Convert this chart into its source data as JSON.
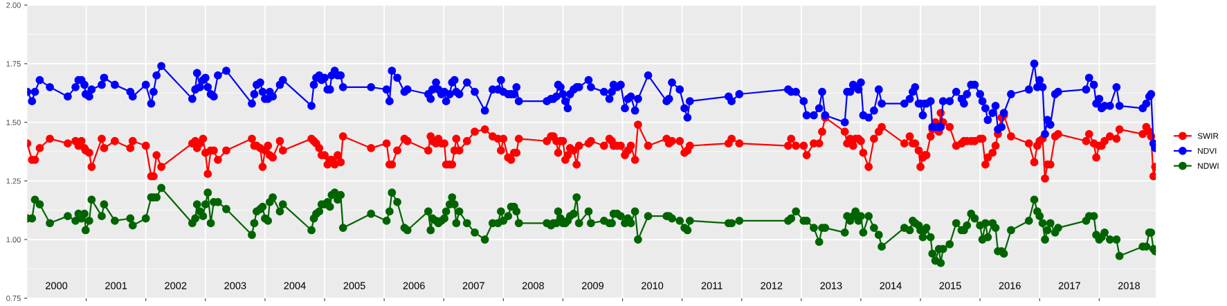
{
  "chart_data": {
    "type": "line",
    "marker": "circle",
    "line_style": "solid",
    "grid": true,
    "legend": "right",
    "xlim": [
      2000.01,
      2018.95
    ],
    "ylim": [
      0.75,
      2.0
    ],
    "xticks": [
      {
        "value": 2000.5,
        "label": "2000"
      },
      {
        "value": 2001.5,
        "label": "2001"
      },
      {
        "value": 2002.5,
        "label": "2002"
      },
      {
        "value": 2003.5,
        "label": "2003"
      },
      {
        "value": 2004.5,
        "label": "2004"
      },
      {
        "value": 2005.5,
        "label": "2005"
      },
      {
        "value": 2006.5,
        "label": "2006"
      },
      {
        "value": 2007.5,
        "label": "2007"
      },
      {
        "value": 2008.5,
        "label": "2008"
      },
      {
        "value": 2009.5,
        "label": "2009"
      },
      {
        "value": 2010.5,
        "label": "2010"
      },
      {
        "value": 2011.5,
        "label": "2011"
      },
      {
        "value": 2012.5,
        "label": "2012"
      },
      {
        "value": 2013.5,
        "label": "2013"
      },
      {
        "value": 2014.5,
        "label": "2014"
      },
      {
        "value": 2015.5,
        "label": "2015"
      },
      {
        "value": 2016.5,
        "label": "2016"
      },
      {
        "value": 2017.5,
        "label": "2017"
      },
      {
        "value": 2018.5,
        "label": "2018"
      },
      {
        "value": 2001,
        "label": null
      },
      {
        "value": 2002,
        "label": null
      },
      {
        "value": 2003,
        "label": null
      },
      {
        "value": 2004,
        "label": null
      },
      {
        "value": 2005,
        "label": null
      },
      {
        "value": 2006,
        "label": null
      },
      {
        "value": 2007,
        "label": null
      },
      {
        "value": 2008,
        "label": null
      },
      {
        "value": 2009,
        "label": null
      },
      {
        "value": 2010,
        "label": null
      },
      {
        "value": 2011,
        "label": null
      },
      {
        "value": 2012,
        "label": null
      },
      {
        "value": 2013,
        "label": null
      },
      {
        "value": 2014,
        "label": null
      },
      {
        "value": 2015,
        "label": null
      },
      {
        "value": 2016,
        "label": null
      },
      {
        "value": 2017,
        "label": null
      },
      {
        "value": 2018,
        "label": null
      }
    ],
    "yticks": [
      {
        "value": 0.75,
        "label": "0.75"
      },
      {
        "value": 1.0,
        "label": "1.00"
      },
      {
        "value": 1.25,
        "label": "1.25"
      },
      {
        "value": 1.5,
        "label": "1.50"
      },
      {
        "value": 1.75,
        "label": "1.75"
      },
      {
        "value": 2.0,
        "label": "2.00"
      }
    ],
    "x": [
      2000.01,
      2000.09,
      2000.14,
      2000.22,
      2000.39,
      2000.69,
      2000.82,
      2000.87,
      2000.92,
      2000.97,
      2000.99,
      2001.05,
      2001.09,
      2001.26,
      2001.3,
      2001.48,
      2001.74,
      2001.78,
      2002.0,
      2002.09,
      2002.13,
      2002.18,
      2002.26,
      2002.78,
      2002.83,
      2002.86,
      2002.91,
      2002.96,
      2003.0,
      2003.04,
      2003.09,
      2003.14,
      2003.21,
      2003.35,
      2003.78,
      2003.82,
      2003.86,
      2003.92,
      2003.96,
      2004.0,
      2004.05,
      2004.08,
      2004.13,
      2004.25,
      2004.3,
      2004.78,
      2004.82,
      2004.86,
      2004.91,
      2004.95,
      2005.0,
      2005.05,
      2005.09,
      2005.12,
      2005.17,
      2005.22,
      2005.27,
      2005.31,
      2005.78,
      2006.04,
      2006.09,
      2006.13,
      2006.22,
      2006.34,
      2006.39,
      2006.74,
      2006.78,
      2006.81,
      2006.87,
      2006.91,
      2006.96,
      2007.01,
      2007.04,
      2007.1,
      2007.14,
      2007.18,
      2007.21,
      2007.26,
      2007.39,
      2007.52,
      2007.69,
      2007.82,
      2007.91,
      2007.96,
      2008.0,
      2008.08,
      2008.13,
      2008.18,
      2008.22,
      2008.26,
      2008.73,
      2008.8,
      2008.84,
      2008.89,
      2008.92,
      2008.96,
      2009.0,
      2009.04,
      2009.08,
      2009.12,
      2009.18,
      2009.23,
      2009.27,
      2009.43,
      2009.47,
      2009.69,
      2009.78,
      2009.82,
      2009.85,
      2009.91,
      2009.97,
      2010.04,
      2010.09,
      2010.14,
      2010.21,
      2010.26,
      2010.43,
      2010.74,
      2010.78,
      2010.83,
      2010.96,
      2011.04,
      2011.09,
      2011.13,
      2011.78,
      2011.83,
      2011.96,
      2012.78,
      2012.83,
      2012.91,
      2013.04,
      2013.09,
      2013.21,
      2013.3,
      2013.35,
      2013.4,
      2013.73,
      2013.77,
      2013.82,
      2013.87,
      2013.91,
      2013.96,
      2014.0,
      2014.04,
      2014.13,
      2014.22,
      2014.3,
      2014.35,
      2014.73,
      2014.82,
      2014.87,
      2014.91,
      2014.97,
      2015.0,
      2015.04,
      2015.07,
      2015.1,
      2015.17,
      2015.2,
      2015.25,
      2015.31,
      2015.34,
      2015.38,
      2015.49,
      2015.6,
      2015.69,
      2015.73,
      2015.78,
      2015.85,
      2015.91,
      2016.0,
      2016.04,
      2016.09,
      2016.13,
      2016.21,
      2016.26,
      2016.3,
      2016.36,
      2016.4,
      2016.52,
      2016.82,
      2016.91,
      2016.96,
      2017.0,
      2017.05,
      2017.09,
      2017.13,
      2017.18,
      2017.26,
      2017.31,
      2017.78,
      2017.83,
      2017.91,
      2017.95,
      2018.0,
      2018.04,
      2018.09,
      2018.18,
      2018.29,
      2018.34,
      2018.73,
      2018.79,
      2018.84,
      2018.87,
      2018.91,
      2018.94
    ],
    "series": [
      {
        "name": "SWIR",
        "color": "#ff0000",
        "values": [
          1.41,
          1.34,
          1.34,
          1.39,
          1.43,
          1.41,
          1.42,
          1.4,
          1.42,
          1.39,
          1.38,
          1.37,
          1.31,
          1.43,
          1.39,
          1.42,
          1.39,
          1.42,
          1.4,
          1.27,
          1.27,
          1.36,
          1.31,
          1.41,
          1.42,
          1.39,
          1.41,
          1.43,
          1.37,
          1.28,
          1.38,
          1.38,
          1.34,
          1.38,
          1.43,
          1.4,
          1.4,
          1.39,
          1.31,
          1.38,
          1.4,
          1.36,
          1.35,
          1.42,
          1.38,
          1.43,
          1.42,
          1.41,
          1.39,
          1.36,
          1.36,
          1.32,
          1.34,
          1.34,
          1.32,
          1.36,
          1.33,
          1.44,
          1.39,
          1.41,
          1.32,
          1.32,
          1.38,
          1.43,
          1.42,
          1.38,
          1.44,
          1.42,
          1.41,
          1.43,
          1.41,
          1.41,
          1.32,
          1.32,
          1.32,
          1.38,
          1.43,
          1.38,
          1.42,
          1.46,
          1.47,
          1.44,
          1.43,
          1.38,
          1.43,
          1.35,
          1.34,
          1.37,
          1.37,
          1.43,
          1.42,
          1.44,
          1.44,
          1.42,
          1.37,
          1.42,
          1.42,
          1.34,
          1.36,
          1.39,
          1.38,
          1.32,
          1.4,
          1.41,
          1.42,
          1.4,
          1.43,
          1.42,
          1.4,
          1.4,
          1.4,
          1.36,
          1.38,
          1.4,
          1.34,
          1.49,
          1.4,
          1.43,
          1.41,
          1.42,
          1.42,
          1.37,
          1.38,
          1.4,
          1.41,
          1.43,
          1.41,
          1.4,
          1.43,
          1.4,
          1.4,
          1.36,
          1.41,
          1.41,
          1.46,
          1.52,
          1.46,
          1.41,
          1.43,
          1.4,
          1.43,
          1.43,
          1.42,
          1.37,
          1.31,
          1.43,
          1.46,
          1.48,
          1.41,
          1.44,
          1.41,
          1.41,
          1.38,
          1.31,
          1.35,
          1.36,
          1.36,
          1.44,
          1.47,
          1.5,
          1.46,
          1.54,
          1.5,
          1.48,
          1.4,
          1.41,
          1.42,
          1.42,
          1.42,
          1.42,
          1.43,
          1.43,
          1.32,
          1.35,
          1.37,
          1.4,
          1.45,
          1.52,
          1.53,
          1.44,
          1.41,
          1.33,
          1.4,
          1.42,
          1.43,
          1.26,
          1.32,
          1.32,
          1.44,
          1.45,
          1.42,
          1.45,
          1.41,
          1.35,
          1.4,
          1.4,
          1.42,
          1.44,
          1.43,
          1.47,
          1.45,
          1.48,
          1.46,
          1.44,
          1.27,
          1.31
        ]
      },
      {
        "name": "NDVI",
        "color": "#0000ff",
        "values": [
          1.63,
          1.59,
          1.63,
          1.68,
          1.65,
          1.61,
          1.65,
          1.68,
          1.68,
          1.66,
          1.62,
          1.61,
          1.64,
          1.66,
          1.69,
          1.66,
          1.63,
          1.61,
          1.66,
          1.58,
          1.63,
          1.7,
          1.74,
          1.6,
          1.64,
          1.71,
          1.65,
          1.68,
          1.69,
          1.65,
          1.62,
          1.61,
          1.7,
          1.72,
          1.58,
          1.62,
          1.66,
          1.67,
          1.63,
          1.6,
          1.6,
          1.63,
          1.61,
          1.66,
          1.68,
          1.57,
          1.66,
          1.69,
          1.7,
          1.68,
          1.69,
          1.64,
          1.64,
          1.7,
          1.72,
          1.7,
          1.7,
          1.65,
          1.65,
          1.64,
          1.59,
          1.72,
          1.69,
          1.63,
          1.64,
          1.62,
          1.6,
          1.64,
          1.67,
          1.64,
          1.62,
          1.63,
          1.59,
          1.62,
          1.67,
          1.68,
          1.63,
          1.62,
          1.67,
          1.63,
          1.55,
          1.64,
          1.64,
          1.68,
          1.63,
          1.62,
          1.62,
          1.62,
          1.65,
          1.59,
          1.59,
          1.6,
          1.6,
          1.61,
          1.66,
          1.65,
          1.62,
          1.59,
          1.56,
          1.62,
          1.64,
          1.65,
          1.65,
          1.68,
          1.65,
          1.63,
          1.6,
          1.63,
          1.66,
          1.65,
          1.66,
          1.56,
          1.6,
          1.61,
          1.55,
          1.6,
          1.7,
          1.59,
          1.6,
          1.67,
          1.64,
          1.56,
          1.52,
          1.59,
          1.61,
          1.59,
          1.62,
          1.64,
          1.63,
          1.63,
          1.59,
          1.53,
          1.53,
          1.56,
          1.63,
          1.53,
          1.5,
          1.63,
          1.63,
          1.66,
          1.65,
          1.64,
          1.67,
          1.53,
          1.52,
          1.55,
          1.64,
          1.58,
          1.58,
          1.6,
          1.63,
          1.65,
          1.58,
          1.58,
          1.53,
          1.58,
          1.58,
          1.59,
          1.48,
          1.48,
          1.48,
          1.48,
          1.59,
          1.59,
          1.63,
          1.6,
          1.58,
          1.62,
          1.66,
          1.66,
          1.62,
          1.59,
          1.56,
          1.51,
          1.54,
          1.57,
          1.47,
          1.48,
          1.54,
          1.62,
          1.64,
          1.75,
          1.65,
          1.68,
          1.65,
          1.45,
          1.51,
          1.49,
          1.62,
          1.63,
          1.64,
          1.69,
          1.66,
          1.58,
          1.6,
          1.56,
          1.57,
          1.57,
          1.65,
          1.57,
          1.56,
          1.58,
          1.61,
          1.62,
          1.41,
          1.39
        ]
      },
      {
        "name": "NDWI",
        "color": "#006400",
        "values": [
          1.09,
          1.09,
          1.17,
          1.15,
          1.07,
          1.1,
          1.08,
          1.11,
          1.09,
          1.11,
          1.04,
          1.08,
          1.17,
          1.1,
          1.15,
          1.08,
          1.09,
          1.06,
          1.09,
          1.18,
          1.18,
          1.18,
          1.22,
          1.07,
          1.09,
          1.15,
          1.12,
          1.1,
          1.15,
          1.2,
          1.07,
          1.16,
          1.16,
          1.13,
          1.02,
          1.07,
          1.12,
          1.13,
          1.14,
          1.09,
          1.08,
          1.16,
          1.18,
          1.12,
          1.15,
          1.04,
          1.09,
          1.11,
          1.12,
          1.15,
          1.15,
          1.16,
          1.14,
          1.19,
          1.2,
          1.17,
          1.19,
          1.05,
          1.11,
          1.08,
          1.12,
          1.2,
          1.16,
          1.05,
          1.04,
          1.12,
          1.04,
          1.09,
          1.08,
          1.07,
          1.08,
          1.09,
          1.12,
          1.15,
          1.18,
          1.15,
          1.07,
          1.12,
          1.07,
          1.03,
          1.0,
          1.07,
          1.07,
          1.12,
          1.08,
          1.1,
          1.14,
          1.14,
          1.12,
          1.07,
          1.07,
          1.06,
          1.07,
          1.07,
          1.12,
          1.09,
          1.07,
          1.07,
          1.08,
          1.1,
          1.11,
          1.18,
          1.07,
          1.12,
          1.07,
          1.08,
          1.07,
          1.07,
          1.11,
          1.11,
          1.1,
          1.07,
          1.09,
          1.07,
          1.12,
          1.0,
          1.1,
          1.1,
          1.1,
          1.09,
          1.08,
          1.05,
          1.04,
          1.08,
          1.07,
          1.07,
          1.08,
          1.08,
          1.09,
          1.12,
          1.08,
          1.08,
          1.05,
          0.99,
          1.05,
          1.05,
          1.03,
          1.1,
          1.08,
          1.1,
          1.12,
          1.08,
          1.1,
          1.03,
          1.1,
          1.05,
          1.02,
          0.97,
          1.05,
          1.04,
          1.08,
          1.07,
          1.06,
          1.04,
          1.01,
          1.04,
          1.05,
          1.01,
          0.94,
          0.91,
          0.96,
          0.9,
          0.96,
          0.98,
          1.07,
          1.04,
          1.04,
          1.06,
          1.11,
          1.09,
          1.06,
          1.0,
          1.07,
          1.01,
          1.07,
          1.05,
          0.95,
          0.95,
          0.94,
          1.04,
          1.08,
          1.17,
          1.12,
          1.1,
          1.07,
          1.0,
          1.04,
          1.07,
          1.03,
          1.05,
          1.08,
          1.1,
          1.1,
          1.02,
          1.0,
          1.01,
          1.03,
          1.0,
          1.0,
          0.93,
          0.97,
          0.97,
          1.03,
          1.03,
          0.96,
          0.95
        ]
      }
    ]
  }
}
